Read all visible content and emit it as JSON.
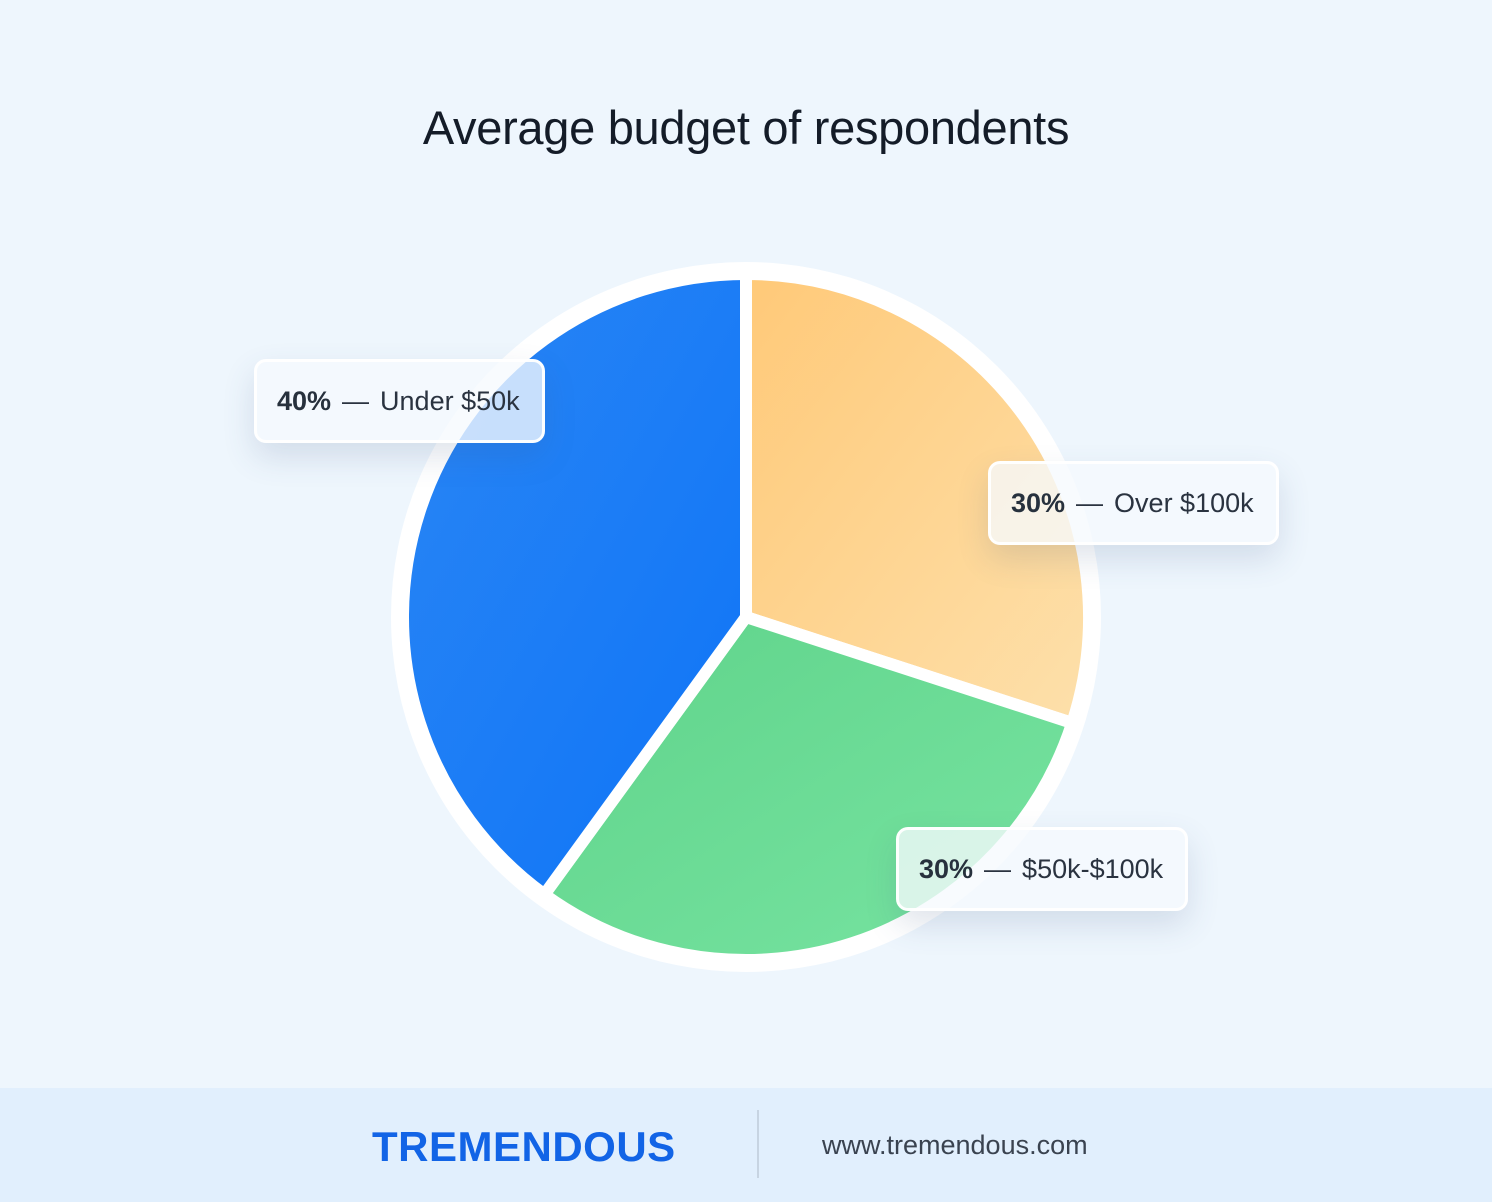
{
  "chart_data": {
    "type": "pie",
    "title": "Average budget of respondents",
    "slices": [
      {
        "label": "Over $100k",
        "value": 30,
        "pct_label": "30%",
        "color_start": "#ffc978",
        "color_end": "#fde0ab"
      },
      {
        "label": "$50k-$100k",
        "value": 30,
        "pct_label": "30%",
        "color_start": "#5fd38a",
        "color_end": "#78e4a2"
      },
      {
        "label": "Under $50k",
        "value": 40,
        "pct_label": "40%",
        "color_start": "#2a86f5",
        "color_end": "#0e74f6"
      }
    ],
    "label_separator": "—"
  },
  "footer": {
    "brand": "TREMENDOUS",
    "website": "www.tremendous.com"
  },
  "colors": {
    "background": "#eef6fd",
    "footer_background": "#e1effd",
    "brand": "#1264e6"
  }
}
